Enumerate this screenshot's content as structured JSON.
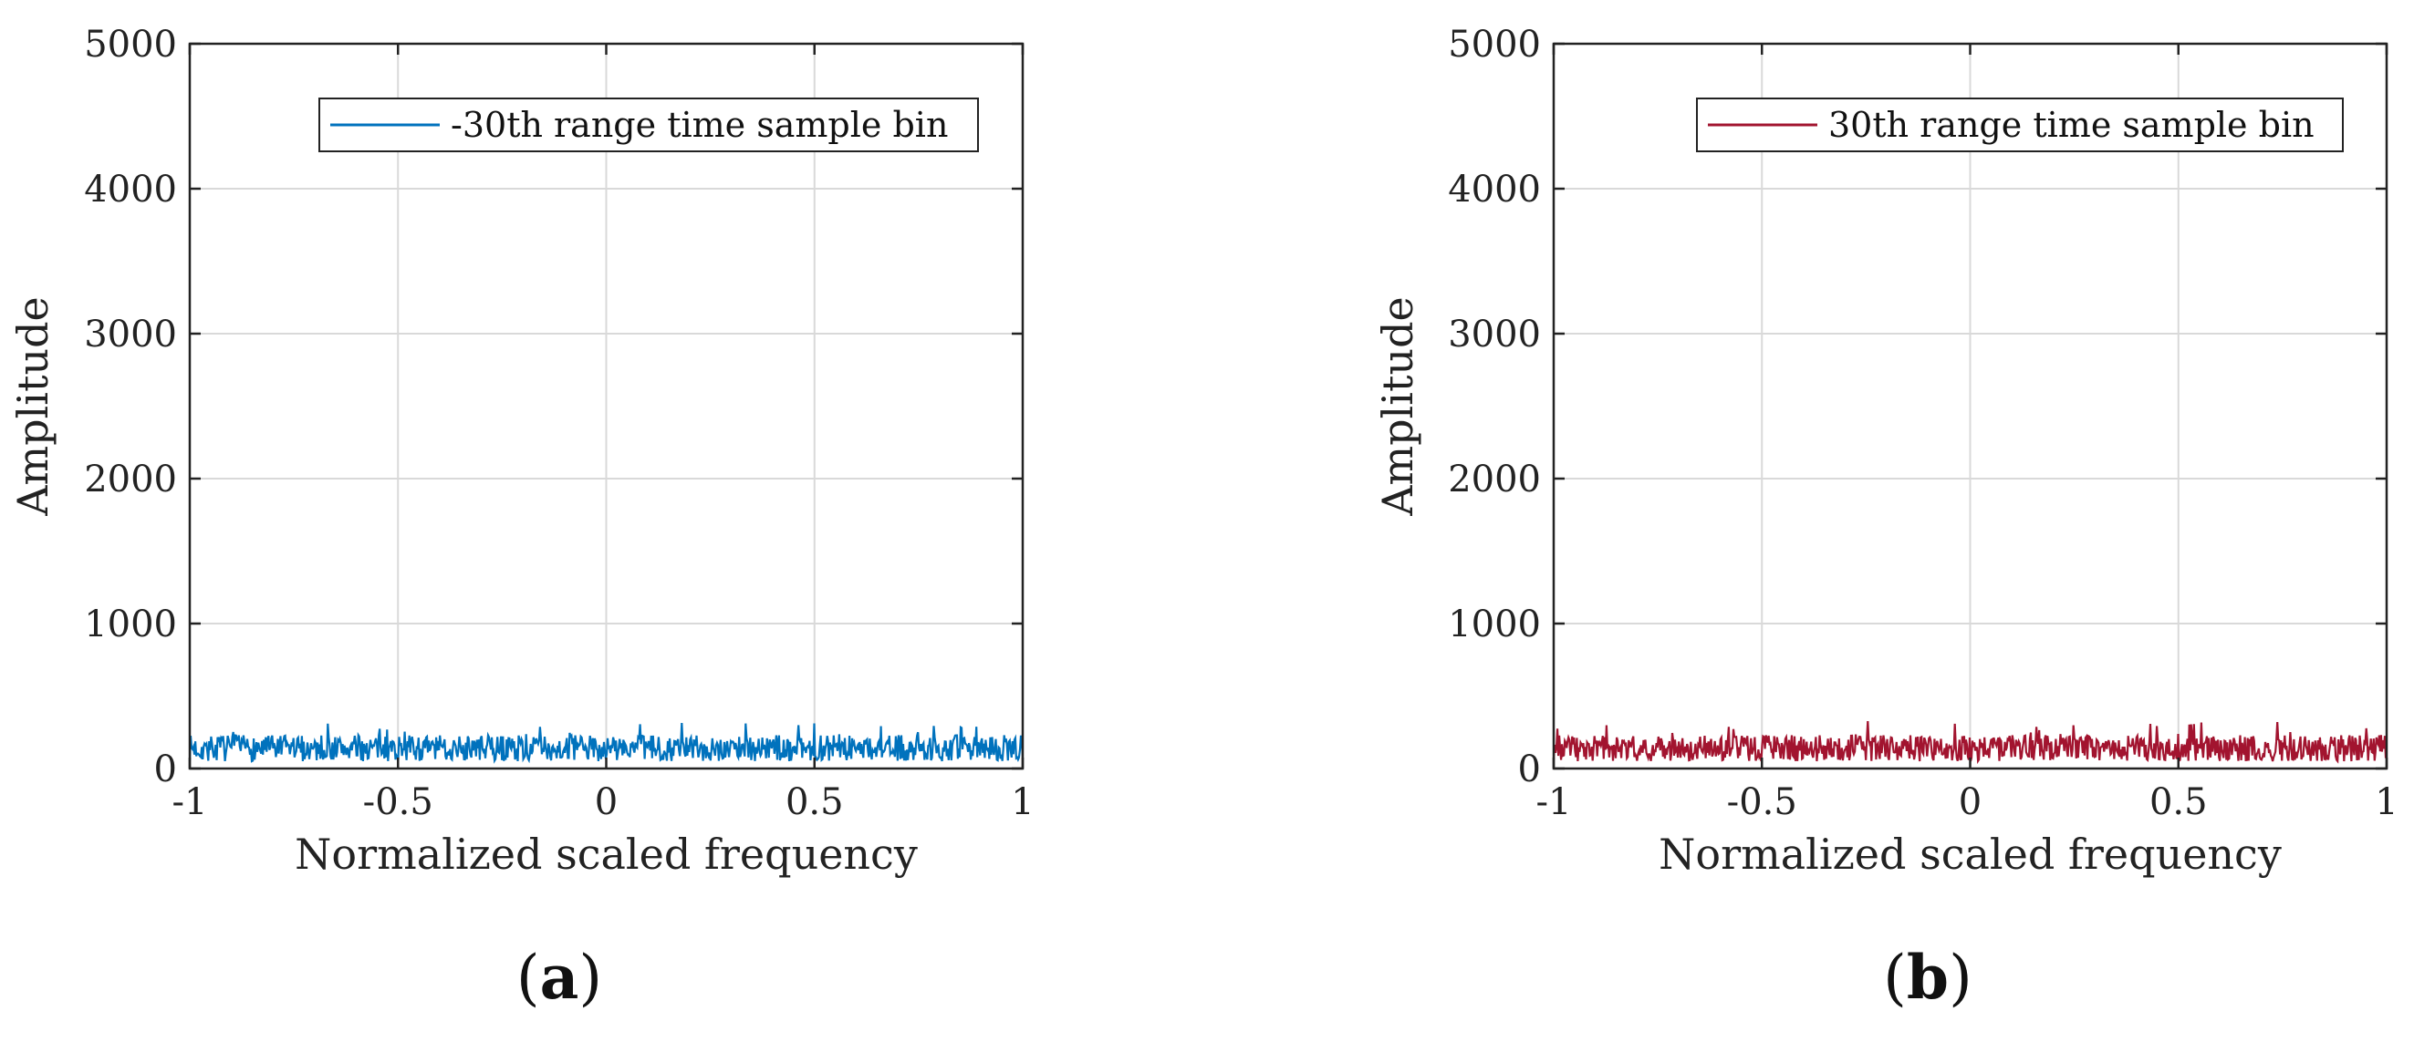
{
  "chart_data": [
    {
      "type": "line",
      "panel_label": {
        "open": "(",
        "letter": "a",
        "close": ")"
      },
      "xlabel": "Normalized scaled frequency",
      "ylabel": "Amplitude",
      "xlim": [
        -1,
        1
      ],
      "ylim": [
        0,
        5000
      ],
      "x_ticks": [
        "-1",
        "-0.5",
        "0",
        "0.5",
        "1"
      ],
      "y_ticks": [
        "0",
        "1000",
        "2000",
        "3000",
        "4000",
        "5000"
      ],
      "grid": true,
      "legend": {
        "label": "-30th range time sample bin",
        "placement": "top-right"
      },
      "series": [
        {
          "name": "-30th range time sample bin",
          "color": "#0072BD",
          "noise_floor": 50,
          "noise_mean": 140,
          "noise_peak": 320,
          "seed": 7
        }
      ]
    },
    {
      "type": "line",
      "panel_label": {
        "open": "(",
        "letter": "b",
        "close": ")"
      },
      "xlabel": "Normalized scaled frequency",
      "ylabel": "Amplitude",
      "xlim": [
        -1,
        1
      ],
      "ylim": [
        0,
        5000
      ],
      "x_ticks": [
        "-1",
        "-0.5",
        "0",
        "0.5",
        "1"
      ],
      "y_ticks": [
        "0",
        "1000",
        "2000",
        "3000",
        "4000",
        "5000"
      ],
      "grid": true,
      "legend": {
        "label": "30th range time sample bin",
        "placement": "top-right"
      },
      "series": [
        {
          "name": "30th range time sample bin",
          "color": "#A2142F",
          "noise_floor": 50,
          "noise_mean": 140,
          "noise_peak": 330,
          "seed": 23
        }
      ]
    }
  ]
}
